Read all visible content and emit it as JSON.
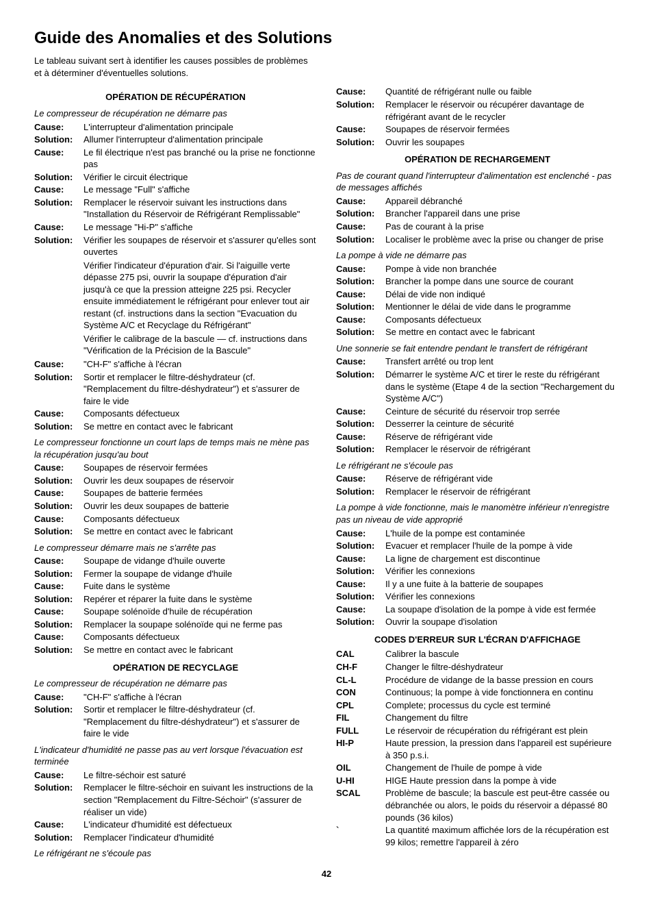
{
  "title": "Guide des Anomalies et des Solutions",
  "intro": "Le tableau suivant sert à identifier les causes possibles de problèmes et à déterminer d'éventuelles solutions.",
  "pageNumber": "42",
  "sections": [
    {
      "head": "OPÉRATION DE RÉCUPÉRATION",
      "groups": [
        {
          "symptom": "Le compresseur de récupération ne démarre pas",
          "items": [
            {
              "k": "Cause:",
              "v": "L'interrupteur d'alimentation principale"
            },
            {
              "k": "Solution:",
              "v": "Allumer l'interrupteur d'alimentation principale"
            },
            {
              "k": "Cause:",
              "v": "Le fil électrique n'est pas branché ou la prise ne fonctionne pas"
            },
            {
              "k": "Solution:",
              "v": "Vérifier le circuit électrique"
            },
            {
              "k": "Cause:",
              "v": "Le message \"Full\" s'affiche"
            },
            {
              "k": "Solution:",
              "v": "Remplacer le réservoir suivant les instructions dans \"Installation du Réservoir de Réfrigérant Remplissable\""
            },
            {
              "k": "Cause:",
              "v": "Le message \"Hi-P\" s'affiche"
            },
            {
              "k": "Solution:",
              "v": "Vérifier les soupapes de réservoir et s'assurer qu'elles sont ouvertes"
            },
            {
              "k": "",
              "v": "Vérifier l'indicateur d'épuration d'air. Si l'aiguille verte dépasse 275 psi, ouvrir la soupape d'épuration d'air jusqu'à ce que la pression atteigne 225 psi. Recycler ensuite immédiatement le réfrigérant pour enlever tout air restant (cf. instructions dans la section \"Evacuation du Système A/C et Recyclage du Réfrigérant\""
            },
            {
              "k": "",
              "v": "Vérifier le calibrage de la bascule  — cf. instructions dans \"Vérification de la Précision de la Bascule\""
            },
            {
              "k": "Cause:",
              "v": "\"CH-F\" s'affiche à l'écran"
            },
            {
              "k": "Solution:",
              "v": "Sortir et remplacer le filtre-déshydrateur (cf. \"Remplacement du filtre-déshydrateur\") et s'assurer de faire le vide"
            },
            {
              "k": "Cause:",
              "v": "Composants défectueux"
            },
            {
              "k": "Solution:",
              "v": "Se mettre en contact avec le fabricant"
            }
          ]
        },
        {
          "symptom": "Le compresseur fonctionne un court laps de temps mais ne mène pas la récupération jusqu'au bout",
          "items": [
            {
              "k": "Cause:",
              "v": "Soupapes de réservoir fermées"
            },
            {
              "k": "Solution:",
              "v": "Ouvrir les deux soupapes de réservoir"
            },
            {
              "k": "Cause:",
              "v": "Soupapes de batterie fermées"
            },
            {
              "k": "Solution:",
              "v": "Ouvrir les deux soupapes de batterie"
            },
            {
              "k": "Cause:",
              "v": "Composants défectueux"
            },
            {
              "k": "Solution:",
              "v": "Se mettre en contact avec le fabricant"
            }
          ]
        },
        {
          "symptom": "Le compresseur démarre mais ne s'arrête pas",
          "items": [
            {
              "k": "Cause:",
              "v": "Soupape de vidange d'huile ouverte"
            },
            {
              "k": "Solution:",
              "v": "Fermer la soupape de vidange d'huile"
            },
            {
              "k": "Cause:",
              "v": "Fuite dans le système"
            },
            {
              "k": "Solution:",
              "v": "Repérer et réparer la fuite dans le système"
            },
            {
              "k": "Cause:",
              "v": "Soupape solénoïde d'huile de récupération"
            },
            {
              "k": "Solution:",
              "v": "Remplacer la soupape solénoïde qui ne ferme pas"
            },
            {
              "k": "Cause:",
              "v": "Composants défectueux"
            },
            {
              "k": "Solution:",
              "v": "Se mettre en contact avec le fabricant"
            }
          ]
        }
      ]
    },
    {
      "head": "OPÉRATION DE RECYCLAGE",
      "groups": [
        {
          "symptom": "Le compresseur de récupération ne démarre pas",
          "items": [
            {
              "k": "Cause:",
              "v": "\"CH-F\" s'affiche à l'écran"
            },
            {
              "k": "Solution:",
              "v": "Sortir et remplacer le filtre-déshydrateur (cf. \"Remplacement du filtre-déshydrateur\") et s'assurer de faire le vide"
            }
          ]
        },
        {
          "symptom": "L'indicateur d'humidité ne passe pas au vert lorsque l'évacuation est terminée",
          "items": [
            {
              "k": "Cause:",
              "v": "Le filtre-séchoir est saturé"
            },
            {
              "k": "Solution:",
              "v": "Remplacer le filtre-séchoir en suivant les instructions de la section \"Remplacement du Filtre-Séchoir\" (s'assurer de réaliser un vide)"
            },
            {
              "k": "Cause:",
              "v": "L'indicateur d'humidité est défectueux"
            },
            {
              "k": "Solution:",
              "v": "Remplacer l'indicateur d'humidité"
            }
          ]
        },
        {
          "symptom": "Le réfrigérant ne s'écoule pas",
          "items": [
            {
              "k": "Cause:",
              "v": "Quantité de réfrigérant nulle ou faible"
            },
            {
              "k": "Solution:",
              "v": "Remplacer le réservoir ou récupérer davantage de réfrigérant avant de le recycler"
            },
            {
              "k": "Cause:",
              "v": "Soupapes de réservoir fermées"
            },
            {
              "k": "Solution:",
              "v": "Ouvrir les soupapes"
            }
          ]
        }
      ]
    },
    {
      "head": "OPÉRATION DE RECHARGEMENT",
      "groups": [
        {
          "symptom": "Pas de courant quand l'interrupteur d'alimentation est enclenché - pas de messages affichés",
          "items": [
            {
              "k": "Cause:",
              "v": "Appareil débranché"
            },
            {
              "k": "Solution:",
              "v": "Brancher l'appareil dans une prise"
            },
            {
              "k": "Cause:",
              "v": "Pas de courant à la prise"
            },
            {
              "k": "Solution:",
              "v": "Localiser le problème avec la prise ou changer de prise"
            }
          ]
        },
        {
          "symptom": "La pompe à vide ne démarre pas",
          "items": [
            {
              "k": "Cause:",
              "v": "Pompe à vide non branchée"
            },
            {
              "k": "Solution:",
              "v": "Brancher la pompe dans une source de courant"
            },
            {
              "k": "Cause:",
              "v": "Délai de vide non indiqué"
            },
            {
              "k": "Solution:",
              "v": "Mentionner le délai de vide dans le programme"
            },
            {
              "k": "Cause:",
              "v": "Composants défectueux"
            },
            {
              "k": "Solution:",
              "v": "Se mettre en contact avec le fabricant"
            }
          ]
        },
        {
          "symptom": "Une sonnerie se fait entendre pendant le transfert de réfrigérant",
          "items": [
            {
              "k": "Cause:",
              "v": "Transfert arrêté ou trop lent"
            },
            {
              "k": "Solution:",
              "v": "Démarrer le système A/C et tirer le reste du réfrigérant dans le système (Etape 4 de la section \"Rechargement du Système A/C\")"
            },
            {
              "k": "Cause:",
              "v": "Ceinture de sécurité du réservoir trop serrée"
            },
            {
              "k": "Solution:",
              "v": "Desserrer la ceinture de sécurité"
            },
            {
              "k": "Cause:",
              "v": "Réserve de réfrigérant vide"
            },
            {
              "k": "Solution:",
              "v": "Remplacer le réservoir de réfrigérant"
            }
          ]
        },
        {
          "symptom": "Le réfrigérant ne s'écoule pas",
          "items": [
            {
              "k": "Cause:",
              "v": "Réserve de réfrigérant vide"
            },
            {
              "k": "Solution:",
              "v": "Remplacer le réservoir de réfrigérant"
            }
          ]
        },
        {
          "symptom": "La pompe à vide fonctionne, mais le manomètre inférieur n'enregistre pas un niveau de vide approprié",
          "items": [
            {
              "k": "Cause:",
              "v": "L'huile de la pompe est contaminée"
            },
            {
              "k": "Solution:",
              "v": "Evacuer et remplacer l'huile de la pompe à vide"
            },
            {
              "k": "Cause:",
              "v": "La ligne de chargement est discontinue"
            },
            {
              "k": "Solution:",
              "v": "Vérifier les connexions"
            },
            {
              "k": "Cause:",
              "v": "Il y a une fuite à la batterie de soupapes"
            },
            {
              "k": "Solution:",
              "v": "Vérifier les connexions"
            },
            {
              "k": "Cause:",
              "v": "La soupape d'isolation de la pompe à vide est fermée"
            },
            {
              "k": "Solution:",
              "v": "Ouvrir la soupape d'isolation"
            }
          ]
        }
      ]
    }
  ],
  "codes": {
    "head": "CODES D'ERREUR SUR L'ÉCRAN D'AFFICHAGE",
    "items": [
      {
        "k": "CAL",
        "v": "Calibrer la bascule"
      },
      {
        "k": "CH-F",
        "v": "Changer le filtre-déshydrateur"
      },
      {
        "k": "CL-L",
        "v": "Procédure de vidange de la basse pression en cours"
      },
      {
        "k": "CON",
        "v": "Continuous; la pompe à vide fonctionnera en continu"
      },
      {
        "k": "CPL",
        "v": "Complete; processus du cycle est terminé"
      },
      {
        "k": "FIL",
        "v": "Changement du filtre"
      },
      {
        "k": "FULL",
        "v": "Le réservoir de récupération du réfrigérant est plein"
      },
      {
        "k": "HI-P",
        "v": "Haute pression, la pression dans l'appareil est supérieure à 350 p.s.i."
      },
      {
        "k": "OIL",
        "v": "Changement de l'huile de pompe à vide"
      },
      {
        "k": "U-HI",
        "v": "HIGE Haute pression dans la pompe à vide"
      },
      {
        "k": "SCAL",
        "v": "Problème de bascule; la bascule est peut-être cassée ou débranchée ou alors, le poids du réservoir a dépassé 80 pounds (36 kilos)"
      },
      {
        "k": "`",
        "v": "La quantité maximum affichée lors de la récupération est  99 kilos; remettre l'appareil à zéro"
      }
    ]
  }
}
